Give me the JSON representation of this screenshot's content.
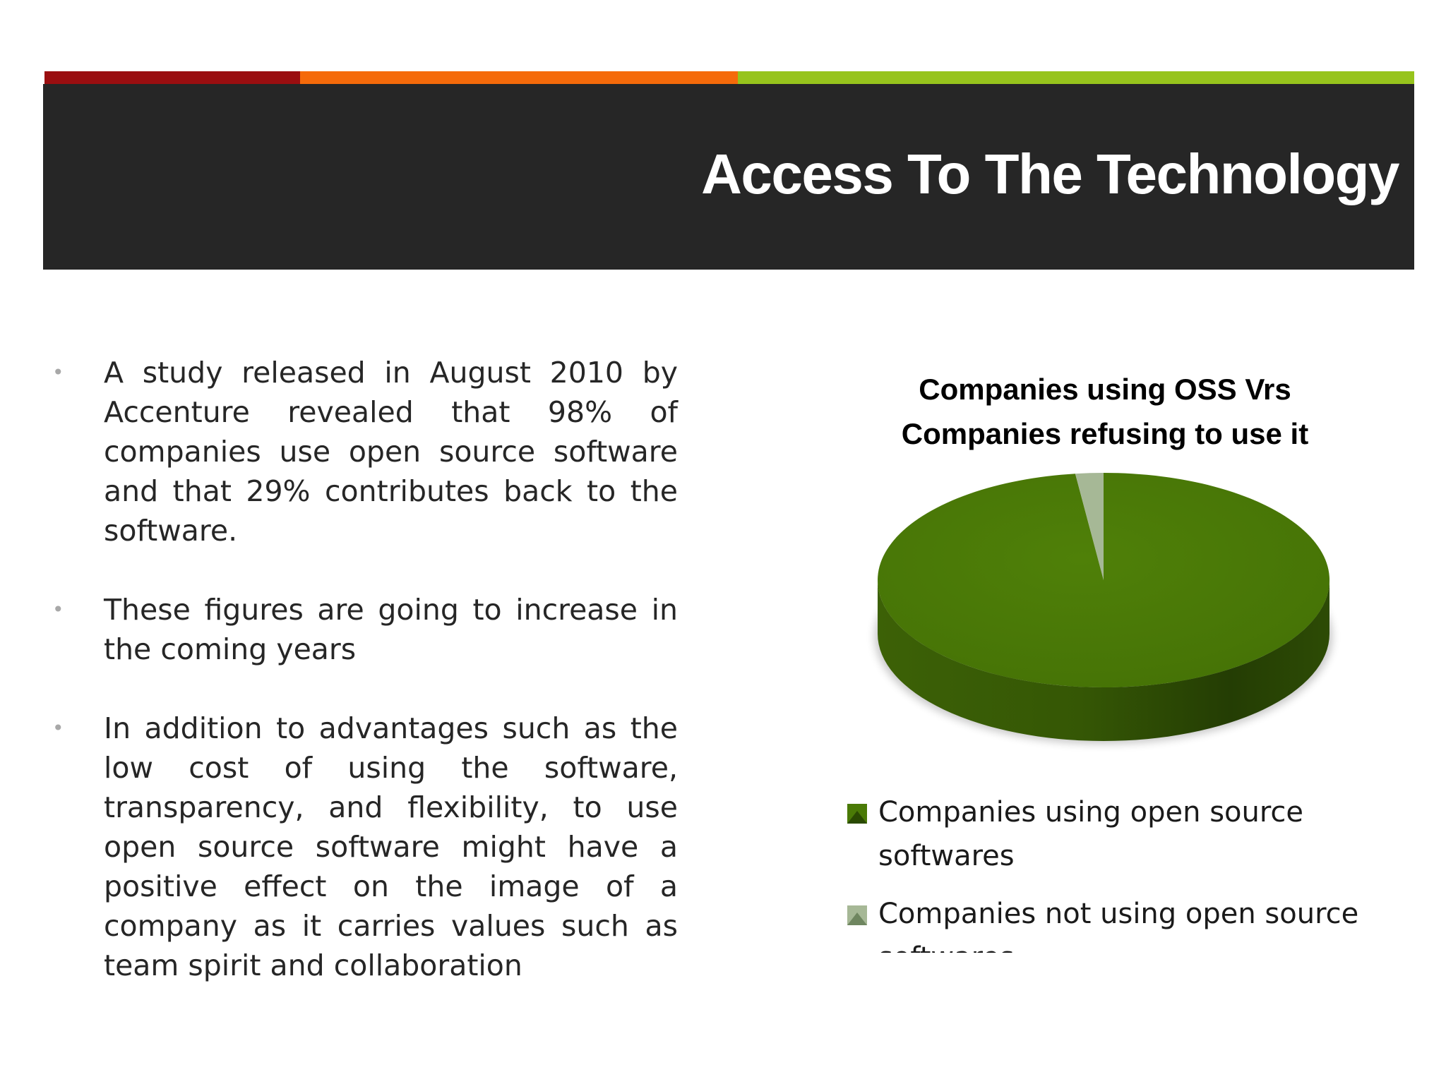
{
  "slide": {
    "title": "Access To The Technology",
    "accent_colors": [
      "#9a0e10",
      "#f56a0a",
      "#97c41c"
    ],
    "title_band_color": "#262626"
  },
  "bullets": [
    "A study released in August 2010 by Accenture revealed that 98% of companies use open source software and that 29% contributes back to the software.",
    "These figures are going to increase in the coming years",
    "In addition to advantages such as the low cost of using the software, transparency, and flexibility, to use open source software might have a positive effect on the image of a company as it carries values such as team spirit and collaboration"
  ],
  "chart_data": {
    "type": "pie",
    "style": "3d",
    "title": "Companies using OSS Vrs Companies refusing to use it",
    "title_lines": [
      "Companies using OSS Vrs",
      "Companies refusing to use it"
    ],
    "categories": [
      "Companies using open source softwares",
      "Companies not using open source softwares"
    ],
    "values": [
      98,
      2
    ],
    "colors": [
      "#4a7a06",
      "#a6b896"
    ],
    "legend_position": "bottom"
  }
}
